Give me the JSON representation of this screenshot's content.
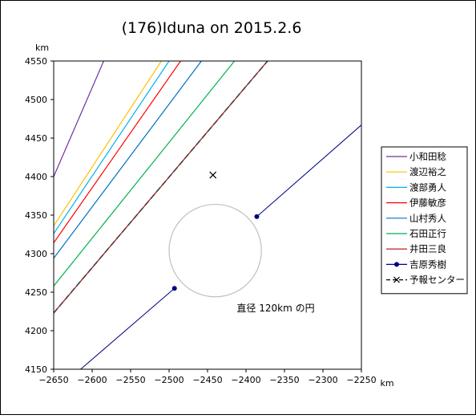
{
  "chart_data": {
    "type": "line",
    "title": "(176)Iduna on 2015.2.6",
    "xlabel": "km",
    "ylabel": "km",
    "xlim": [
      -2650,
      -2250
    ],
    "ylim": [
      4150,
      4550
    ],
    "xticks": [
      -2650,
      -2600,
      -2550,
      -2500,
      -2450,
      -2400,
      -2350,
      -2300,
      -2250
    ],
    "yticks": [
      4150,
      4200,
      4250,
      4300,
      4350,
      4400,
      4450,
      4500,
      4550
    ],
    "xtick_labels": [
      "−2650",
      "−2600",
      "−2550",
      "−2500",
      "−2450",
      "−2400",
      "−2350",
      "−2300",
      "−2250"
    ],
    "ytick_labels": [
      "4150",
      "4200",
      "4250",
      "4300",
      "4350",
      "4400",
      "4450",
      "4500",
      "4550"
    ],
    "grid": false,
    "legend_position": "right",
    "series": [
      {
        "name": "小和田稔",
        "color": "#7030a0",
        "marker": "none",
        "points": [
          [
            -2650,
            4400
          ],
          [
            -2585,
            4550
          ]
        ]
      },
      {
        "name": "渡辺裕之",
        "color": "#ffc000",
        "marker": "none",
        "points": [
          [
            -2650,
            4336
          ],
          [
            -2510,
            4550
          ]
        ]
      },
      {
        "name": "渡部勇人",
        "color": "#00b0f0",
        "marker": "none",
        "points": [
          [
            -2650,
            4326
          ],
          [
            -2500,
            4550
          ]
        ]
      },
      {
        "name": "伊藤敏彦",
        "color": "#ff0000",
        "marker": "none",
        "points": [
          [
            -2650,
            4314
          ],
          [
            -2485,
            4550
          ]
        ]
      },
      {
        "name": "山村秀人",
        "color": "#0070c0",
        "marker": "none",
        "points": [
          [
            -2650,
            4294
          ],
          [
            -2458,
            4550
          ]
        ]
      },
      {
        "name": "石田正行",
        "color": "#00b050",
        "marker": "none",
        "points": [
          [
            -2650,
            4258
          ],
          [
            -2415,
            4550
          ]
        ]
      },
      {
        "name": "井田三良",
        "color": "#c00000",
        "marker": "none",
        "points": [
          [
            -2650,
            4223
          ],
          [
            -2372,
            4550
          ]
        ]
      },
      {
        "name": "吉原秀樹",
        "color": "#000080",
        "marker": "circle",
        "segments": [
          [
            [
              -2615,
              4150
            ],
            [
              -2493,
              4255
            ]
          ],
          [
            [
              -2386,
              4348
            ],
            [
              -2250,
              4467
            ]
          ]
        ]
      },
      {
        "name": "予報センター",
        "color": "#404040",
        "marker": "x",
        "dashed": true,
        "points": [
          [
            -2650,
            4223
          ],
          [
            -2372,
            4550
          ]
        ],
        "center": [
          -2443,
          4402
        ]
      }
    ],
    "circle": {
      "center": [
        -2440,
        4304
      ],
      "radius": 60,
      "color": "#c0c0c0"
    },
    "annotation": "直径 120km の円"
  }
}
